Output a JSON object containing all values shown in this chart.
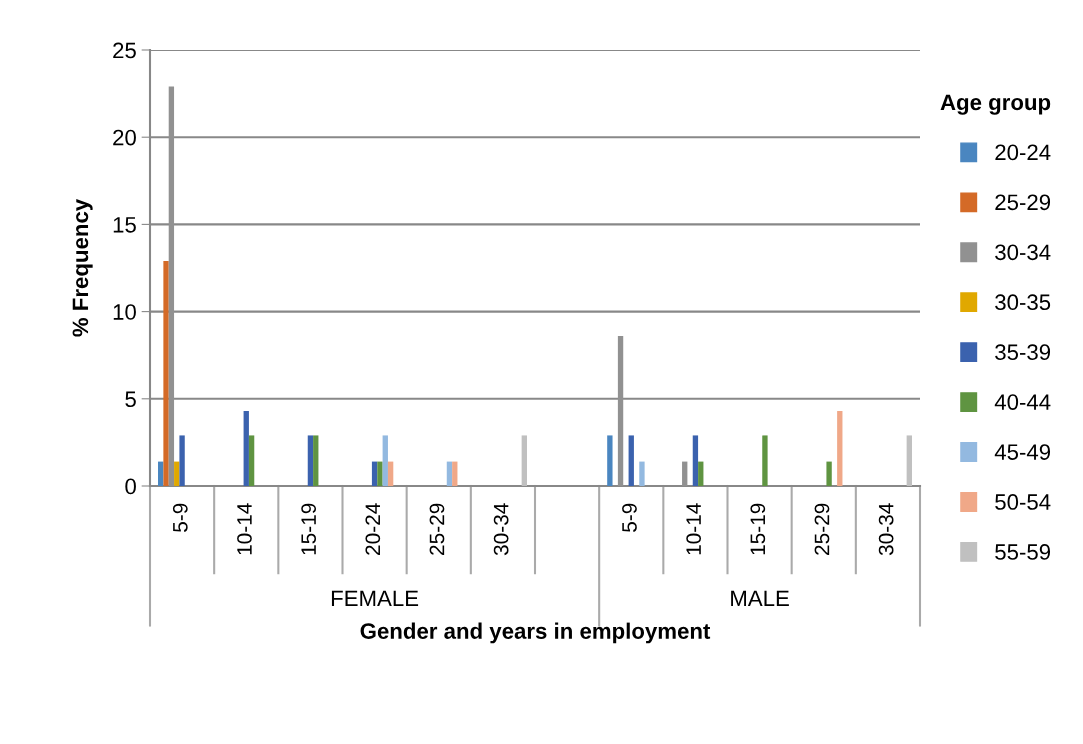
{
  "chart_data": {
    "type": "bar",
    "ylabel": "% Frequency",
    "xlabel": "Gender and years in employment",
    "legend_title": "Age group",
    "categories": [
      "5-9",
      "10-14",
      "15-19",
      "20-24",
      "25-29",
      "30-34",
      null,
      "5-9",
      "10-14",
      "15-19",
      "25-29",
      "30-34"
    ],
    "annotations": [
      "FEMALE",
      "MALE"
    ],
    "series": [
      {
        "name": "20-24",
        "color": "#4a86c0",
        "values": [
          1.4,
          null,
          null,
          null,
          null,
          null,
          null,
          2.9,
          null,
          null,
          null,
          null
        ]
      },
      {
        "name": "25-29",
        "color": "#d46a27",
        "values": [
          12.9,
          null,
          null,
          null,
          null,
          null,
          null,
          null,
          null,
          null,
          null,
          null
        ]
      },
      {
        "name": "30-34",
        "color": "#919191",
        "values": [
          22.9,
          null,
          null,
          null,
          null,
          null,
          null,
          8.6,
          1.4,
          null,
          null,
          null
        ]
      },
      {
        "name": "30-35",
        "color": "#e0a800",
        "values": [
          1.4,
          null,
          null,
          null,
          null,
          null,
          null,
          null,
          null,
          null,
          null,
          null
        ]
      },
      {
        "name": "35-39",
        "color": "#3b62ae",
        "values": [
          2.9,
          4.3,
          2.9,
          1.4,
          null,
          null,
          null,
          2.9,
          2.9,
          null,
          null,
          null
        ]
      },
      {
        "name": "40-44",
        "color": "#5f9441",
        "values": [
          null,
          2.9,
          2.9,
          1.4,
          null,
          null,
          null,
          null,
          1.4,
          2.9,
          1.4,
          null
        ]
      },
      {
        "name": "45-49",
        "color": "#93b9e0",
        "values": [
          null,
          null,
          null,
          2.9,
          1.4,
          null,
          null,
          1.4,
          null,
          null,
          null,
          null
        ]
      },
      {
        "name": "50-54",
        "color": "#f0a888",
        "values": [
          null,
          null,
          null,
          1.4,
          1.4,
          null,
          null,
          null,
          null,
          null,
          4.3,
          null
        ]
      },
      {
        "name": "55-59",
        "color": "#c0c0c0",
        "values": [
          null,
          null,
          null,
          null,
          null,
          2.9,
          null,
          null,
          null,
          null,
          null,
          2.9
        ]
      }
    ],
    "ylim": [
      0,
      25
    ],
    "yticks": [
      0,
      5,
      10,
      15,
      20,
      25
    ],
    "grid": "y",
    "legend": "right"
  }
}
